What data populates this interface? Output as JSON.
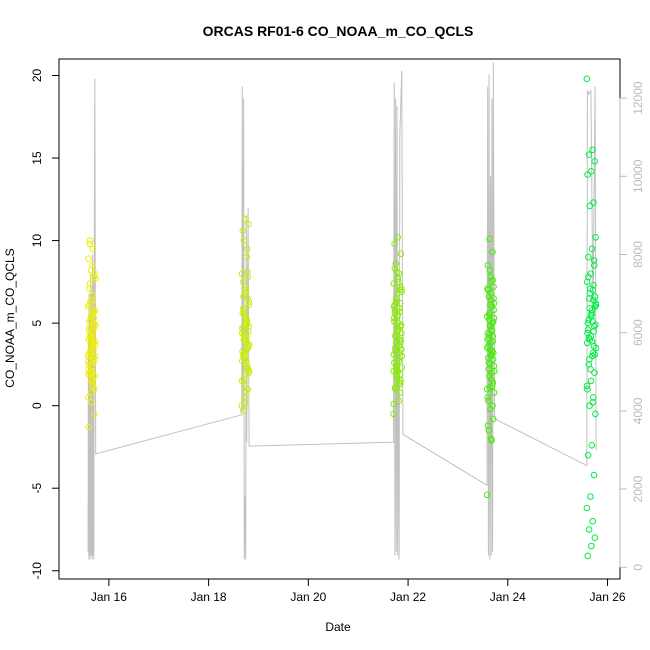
{
  "chart_data": {
    "type": "scatter",
    "title": "ORCAS RF01-6 CO_NOAA_m_CO_QCLS",
    "xlabel": "Date",
    "ylabel": "CO_NOAA_m_CO_QCLS",
    "x_axis": {
      "type": "date",
      "range": [
        "2016-01-15 00:00",
        "2016-01-26 06:00"
      ],
      "ticks": [
        {
          "date": "2016-01-16",
          "label": "Jan 16"
        },
        {
          "date": "2016-01-18",
          "label": "Jan 18"
        },
        {
          "date": "2016-01-20",
          "label": "Jan 20"
        },
        {
          "date": "2016-01-22",
          "label": "Jan 22"
        },
        {
          "date": "2016-01-24",
          "label": "Jan 24"
        },
        {
          "date": "2016-01-26",
          "label": "Jan 26"
        }
      ]
    },
    "y_left": {
      "range": [
        -10.5,
        21
      ],
      "ticks": [
        {
          "value": -10,
          "label": "-10"
        },
        {
          "value": -5,
          "label": "-5"
        },
        {
          "value": 0,
          "label": "0"
        },
        {
          "value": 5,
          "label": "5"
        },
        {
          "value": 10,
          "label": "10"
        },
        {
          "value": 15,
          "label": "15"
        },
        {
          "value": 20,
          "label": "20"
        }
      ]
    },
    "y_right": {
      "range": [
        -300,
        13000
      ],
      "ticks": [
        {
          "value": 0,
          "label": "0"
        },
        {
          "value": 2000,
          "label": "2000"
        },
        {
          "value": 4000,
          "label": "4000"
        },
        {
          "value": 6000,
          "label": "6000"
        },
        {
          "value": 8000,
          "label": "8000"
        },
        {
          "value": 10000,
          "label": "10000"
        },
        {
          "value": 12000,
          "label": "12000"
        }
      ]
    },
    "altitude_line": {
      "color": "#c0c0c0",
      "points": [
        [
          "2016-01-15 14:00",
          400
        ],
        [
          "2016-01-15 14:10",
          6000
        ],
        [
          "2016-01-15 14:20",
          200
        ],
        [
          "2016-01-15 14:30",
          7000
        ],
        [
          "2016-01-15 14:40",
          300
        ],
        [
          "2016-01-15 14:50",
          6500
        ],
        [
          "2016-01-15 15:00",
          200
        ],
        [
          "2016-01-15 15:15",
          7500
        ],
        [
          "2016-01-15 15:30",
          300
        ],
        [
          "2016-01-15 15:45",
          7000
        ],
        [
          "2016-01-15 16:00",
          200
        ],
        [
          "2016-01-15 16:10",
          8000
        ],
        [
          "2016-01-15 16:20",
          300
        ],
        [
          "2016-01-15 16:30",
          7500
        ],
        [
          "2016-01-15 16:45",
          200
        ],
        [
          "2016-01-15 17:00",
          8500
        ],
        [
          "2016-01-15 17:15",
          12500
        ],
        [
          "2016-01-15 17:40",
          2900
        ],
        [
          "2016-01-18 16:00",
          3900
        ],
        [
          "2016-01-18 16:10",
          12300
        ],
        [
          "2016-01-18 16:30",
          4000
        ],
        [
          "2016-01-18 16:50",
          12000
        ],
        [
          "2016-01-18 17:10",
          200
        ],
        [
          "2016-01-18 17:30",
          1800
        ],
        [
          "2016-01-18 17:50",
          200
        ],
        [
          "2016-01-18 18:10",
          9000
        ],
        [
          "2016-01-18 18:20",
          3200
        ],
        [
          "2016-01-18 19:00",
          9200
        ],
        [
          "2016-01-18 19:30",
          3100
        ],
        [
          "2016-01-21 17:00",
          3200
        ],
        [
          "2016-01-21 17:20",
          12400
        ],
        [
          "2016-01-21 17:40",
          300
        ],
        [
          "2016-01-21 18:00",
          12000
        ],
        [
          "2016-01-21 18:20",
          400
        ],
        [
          "2016-01-21 18:40",
          11800
        ],
        [
          "2016-01-21 19:00",
          300
        ],
        [
          "2016-01-21 19:20",
          6000
        ],
        [
          "2016-01-21 19:40",
          200
        ],
        [
          "2016-01-21 20:00",
          11000
        ],
        [
          "2016-01-21 21:00",
          12700
        ],
        [
          "2016-01-21 21:30",
          3400
        ],
        [
          "2016-01-23 14:00",
          2100
        ],
        [
          "2016-01-23 14:20",
          12300
        ],
        [
          "2016-01-23 14:40",
          300
        ],
        [
          "2016-01-23 15:00",
          12600
        ],
        [
          "2016-01-23 15:20",
          200
        ],
        [
          "2016-01-23 15:40",
          10000
        ],
        [
          "2016-01-23 16:00",
          300
        ],
        [
          "2016-01-23 16:20",
          12000
        ],
        [
          "2016-01-23 16:40",
          400
        ],
        [
          "2016-01-23 17:00",
          12900
        ],
        [
          "2016-01-23 17:40",
          3800
        ],
        [
          "2016-01-25 14:00",
          2600
        ],
        [
          "2016-01-25 14:20",
          12200
        ],
        [
          "2016-01-25 15:00",
          12100
        ],
        [
          "2016-01-25 16:00",
          12200
        ],
        [
          "2016-01-25 17:00",
          6500
        ],
        [
          "2016-01-25 18:00",
          12300
        ],
        [
          "2016-01-25 18:30",
          3000
        ]
      ]
    },
    "flights": [
      {
        "range": [
          "2016-01-15 14:00",
          "2016-01-15 17:30"
        ],
        "color": "#f0f000",
        "values": [
          0.5,
          1.2,
          2.0,
          2.8,
          3.5,
          4.0,
          4.6,
          5.2,
          5.8,
          6.4,
          7.1,
          7.8,
          8.2,
          8.9,
          9.5,
          10.0,
          1.8,
          2.4,
          3.1,
          3.8,
          4.3,
          4.9,
          5.5,
          6.1,
          1.0,
          1.5,
          2.2,
          2.9,
          3.3,
          3.7,
          4.1,
          4.5,
          5.0,
          5.4,
          6.0,
          6.7,
          7.4,
          8.0,
          0.8,
          1.9,
          2.6,
          3.2,
          3.9,
          4.4,
          5.1,
          5.7,
          2.1,
          3.0,
          3.6,
          4.2,
          4.8,
          1.4,
          2.5,
          3.4,
          4.0,
          7.7,
          8.5,
          9.8,
          -0.5,
          0.2,
          -1.3,
          5.6,
          6.3,
          3.0,
          2.0,
          4.7,
          5.3,
          3.8,
          2.7,
          1.6
        ]
      },
      {
        "range": [
          "2016-01-18 16:00",
          "2016-01-18 19:30"
        ],
        "color": "#c8f000",
        "values": [
          0.0,
          0.8,
          1.6,
          2.2,
          2.8,
          3.3,
          3.8,
          4.3,
          4.8,
          5.3,
          5.9,
          6.5,
          7.2,
          8.0,
          9.0,
          10.0,
          11.0,
          11.3,
          10.6,
          9.5,
          1.2,
          2.0,
          2.6,
          3.1,
          3.5,
          3.9,
          4.4,
          4.9,
          5.5,
          6.1,
          6.8,
          7.5,
          8.1,
          0.5,
          1.5,
          2.4,
          3.0,
          3.6,
          4.1,
          4.6,
          5.1,
          5.7,
          6.3,
          7.0,
          -0.3,
          1.0,
          1.9,
          2.7,
          3.4,
          4.0,
          4.5,
          5.0,
          5.6,
          2.3,
          3.2,
          3.7,
          4.2,
          6.6,
          7.8,
          0.2,
          4.7,
          5.2,
          3.0,
          2.1
        ]
      },
      {
        "range": [
          "2016-01-21 17:00",
          "2016-01-21 21:00"
        ],
        "color": "#88ee00",
        "values": [
          -0.5,
          0.3,
          1.0,
          1.5,
          2.0,
          2.6,
          3.2,
          3.8,
          4.4,
          5.0,
          5.6,
          6.2,
          6.8,
          7.4,
          8.0,
          8.6,
          9.2,
          10.2,
          9.8,
          1.3,
          1.8,
          2.3,
          2.9,
          3.5,
          4.1,
          4.7,
          5.3,
          5.9,
          6.5,
          7.1,
          7.7,
          8.3,
          0.8,
          1.6,
          2.1,
          2.7,
          3.3,
          3.9,
          4.5,
          5.1,
          5.7,
          6.3,
          6.9,
          7.5,
          1.1,
          1.9,
          2.5,
          3.1,
          3.7,
          4.3,
          4.9,
          5.5,
          6.1,
          7.0,
          2.2,
          3.0,
          3.6,
          4.2,
          4.8,
          5.4,
          6.0,
          1.4,
          2.4,
          3.4,
          4.6,
          5.8,
          7.2,
          8.1,
          0.1,
          4.0
        ]
      },
      {
        "range": [
          "2016-01-23 14:00",
          "2016-01-23 17:30"
        ],
        "color": "#44ee00",
        "values": [
          -5.4,
          -2.1,
          -1.5,
          -0.8,
          -0.2,
          0.5,
          1.2,
          1.8,
          2.4,
          3.0,
          3.6,
          4.2,
          4.8,
          5.4,
          6.0,
          6.6,
          7.2,
          7.8,
          8.5,
          9.3,
          10.1,
          0.8,
          1.6,
          2.2,
          2.8,
          3.4,
          4.0,
          4.6,
          5.2,
          5.8,
          6.4,
          7.0,
          7.6,
          8.2,
          1.0,
          2.0,
          2.6,
          3.2,
          3.8,
          4.4,
          5.0,
          5.6,
          6.2,
          6.8,
          0.3,
          1.4,
          2.5,
          3.5,
          4.5,
          5.5,
          6.5,
          7.5,
          -1.2,
          0.0,
          1.1,
          2.1,
          3.1,
          4.1,
          5.1,
          6.1,
          7.1,
          3.3,
          4.3,
          5.3,
          -2.0,
          2.9,
          3.9,
          4.9
        ]
      },
      {
        "range": [
          "2016-01-25 14:00",
          "2016-01-25 18:30"
        ],
        "color": "#00ee44",
        "values": [
          19.8,
          15.5,
          15.2,
          14.8,
          14.2,
          14.0,
          12.3,
          12.1,
          10.2,
          9.5,
          9.0,
          8.5,
          8.0,
          7.5,
          7.0,
          6.5,
          6.0,
          5.5,
          5.0,
          4.5,
          4.0,
          3.5,
          3.0,
          2.5,
          2.0,
          1.5,
          1.0,
          0.5,
          0.0,
          -0.5,
          -2.4,
          -3.0,
          -4.2,
          -5.5,
          -6.2,
          -7.0,
          -7.5,
          -8.0,
          -8.5,
          -9.1,
          7.3,
          6.8,
          6.2,
          5.8,
          5.2,
          4.8,
          4.2,
          3.8,
          3.2,
          2.8,
          6.6,
          5.6,
          4.6,
          3.6,
          7.1,
          6.1,
          5.1,
          4.1,
          3.1,
          5.4,
          4.4,
          6.4,
          5.9,
          4.9,
          3.9,
          7.8,
          8.8,
          2.2,
          1.2,
          0.2
        ]
      }
    ]
  }
}
